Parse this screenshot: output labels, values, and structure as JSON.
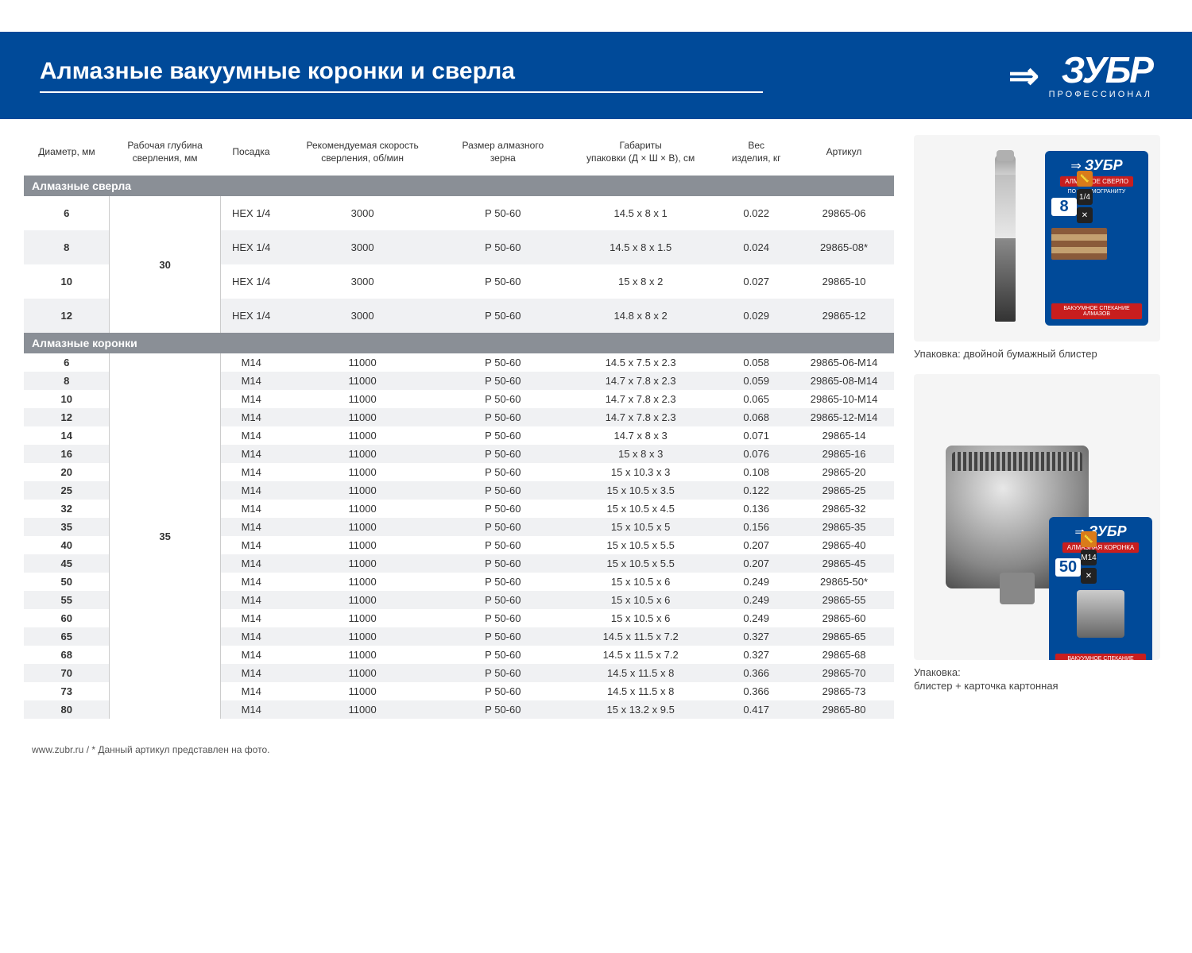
{
  "header": {
    "title": "Алмазные вакуумные коронки и сверла",
    "logo_text": "ЗУБР",
    "logo_sub": "ПРОФЕССИОНАЛ"
  },
  "columns": [
    "Диаметр, мм",
    "Рабочая глубина сверления, мм",
    "Посадка",
    "Рекомендуемая скорость сверления, об/мин",
    "Размер алмазного зерна",
    "Габариты упаковки (Д × Ш × В), см",
    "Вес изделия, кг",
    "Артикул"
  ],
  "section1": {
    "title": "Алмазные сверла",
    "depth": "30",
    "rows": [
      {
        "d": "6",
        "fit": "HEX 1/4",
        "spd": "3000",
        "grain": "P 50-60",
        "dim": "14.5 x 8 x 1",
        "wt": "0.022",
        "art": "29865-06"
      },
      {
        "d": "8",
        "fit": "HEX 1/4",
        "spd": "3000",
        "grain": "P 50-60",
        "dim": "14.5 x 8 x 1.5",
        "wt": "0.024",
        "art": "29865-08*"
      },
      {
        "d": "10",
        "fit": "HEX 1/4",
        "spd": "3000",
        "grain": "P 50-60",
        "dim": "15 x 8 x 2",
        "wt": "0.027",
        "art": "29865-10"
      },
      {
        "d": "12",
        "fit": "HEX 1/4",
        "spd": "3000",
        "grain": "P 50-60",
        "dim": "14.8 x 8 x 2",
        "wt": "0.029",
        "art": "29865-12"
      }
    ]
  },
  "section2": {
    "title": "Алмазные коронки",
    "depth": "35",
    "rows": [
      {
        "d": "6",
        "fit": "M14",
        "spd": "11000",
        "grain": "P 50-60",
        "dim": "14.5 x 7.5 x 2.3",
        "wt": "0.058",
        "art": "29865-06-M14"
      },
      {
        "d": "8",
        "fit": "M14",
        "spd": "11000",
        "grain": "P 50-60",
        "dim": "14.7 x 7.8 x 2.3",
        "wt": "0.059",
        "art": "29865-08-M14"
      },
      {
        "d": "10",
        "fit": "M14",
        "spd": "11000",
        "grain": "P 50-60",
        "dim": "14.7 x 7.8 x 2.3",
        "wt": "0.065",
        "art": "29865-10-M14"
      },
      {
        "d": "12",
        "fit": "M14",
        "spd": "11000",
        "grain": "P 50-60",
        "dim": "14.7 x 7.8 x 2.3",
        "wt": "0.068",
        "art": "29865-12-M14"
      },
      {
        "d": "14",
        "fit": "M14",
        "spd": "11000",
        "grain": "P 50-60",
        "dim": "14.7 x 8 x 3",
        "wt": "0.071",
        "art": "29865-14"
      },
      {
        "d": "16",
        "fit": "M14",
        "spd": "11000",
        "grain": "P 50-60",
        "dim": "15 x 8 x 3",
        "wt": "0.076",
        "art": "29865-16"
      },
      {
        "d": "20",
        "fit": "M14",
        "spd": "11000",
        "grain": "P 50-60",
        "dim": "15 x 10.3 x 3",
        "wt": "0.108",
        "art": "29865-20"
      },
      {
        "d": "25",
        "fit": "M14",
        "spd": "11000",
        "grain": "P 50-60",
        "dim": "15 x 10.5 x 3.5",
        "wt": "0.122",
        "art": "29865-25"
      },
      {
        "d": "32",
        "fit": "M14",
        "spd": "11000",
        "grain": "P 50-60",
        "dim": "15 x 10.5 x 4.5",
        "wt": "0.136",
        "art": "29865-32"
      },
      {
        "d": "35",
        "fit": "M14",
        "spd": "11000",
        "grain": "P 50-60",
        "dim": "15 x 10.5 x 5",
        "wt": "0.156",
        "art": "29865-35"
      },
      {
        "d": "40",
        "fit": "M14",
        "spd": "11000",
        "grain": "P 50-60",
        "dim": "15 x 10.5 x 5.5",
        "wt": "0.207",
        "art": "29865-40"
      },
      {
        "d": "45",
        "fit": "M14",
        "spd": "11000",
        "grain": "P 50-60",
        "dim": "15 x 10.5 x 5.5",
        "wt": "0.207",
        "art": "29865-45"
      },
      {
        "d": "50",
        "fit": "M14",
        "spd": "11000",
        "grain": "P 50-60",
        "dim": "15 x 10.5 x 6",
        "wt": "0.249",
        "art": "29865-50*"
      },
      {
        "d": "55",
        "fit": "M14",
        "spd": "11000",
        "grain": "P 50-60",
        "dim": "15 x 10.5 x 6",
        "wt": "0.249",
        "art": "29865-55"
      },
      {
        "d": "60",
        "fit": "M14",
        "spd": "11000",
        "grain": "P 50-60",
        "dim": "15 x 10.5 x 6",
        "wt": "0.249",
        "art": "29865-60"
      },
      {
        "d": "65",
        "fit": "M14",
        "spd": "11000",
        "grain": "P 50-60",
        "dim": "14.5 x 11.5 x 7.2",
        "wt": "0.327",
        "art": "29865-65"
      },
      {
        "d": "68",
        "fit": "M14",
        "spd": "11000",
        "grain": "P 50-60",
        "dim": "14.5 x 11.5 x 7.2",
        "wt": "0.327",
        "art": "29865-68"
      },
      {
        "d": "70",
        "fit": "M14",
        "spd": "11000",
        "grain": "P 50-60",
        "dim": "14.5 x 11.5 x 8",
        "wt": "0.366",
        "art": "29865-70"
      },
      {
        "d": "73",
        "fit": "M14",
        "spd": "11000",
        "grain": "P 50-60",
        "dim": "14.5 x 11.5 x 8",
        "wt": "0.366",
        "art": "29865-73"
      },
      {
        "d": "80",
        "fit": "M14",
        "spd": "11000",
        "grain": "P 50-60",
        "dim": "15 x 13.2 x 9.5",
        "wt": "0.417",
        "art": "29865-80"
      }
    ]
  },
  "footer": "www.zubr.ru   /   * Данный артикул представлен на фото.",
  "sidebar": {
    "caption1": "Упаковка: двойной бумажный блистер",
    "caption2a": "Упаковка:",
    "caption2b": "блистер + карточка картонная",
    "blister1": {
      "logo": "ЗУБР",
      "red1": "АЛМАЗНОЕ СВЕРЛО",
      "red1b": "ПО КЕРАМОГРАНИТУ",
      "num": "8",
      "redbot": "ВАКУУМНОЕ СПЕКАНИЕ АЛМАЗОВ"
    },
    "blister2": {
      "logo": "ЗУБР",
      "red1": "АЛМАЗНАЯ КОРОНКА",
      "num": "50",
      "redbot": "ВАКУУМНОЕ СПЕКАНИЕ АЛМАЗОВ"
    }
  }
}
